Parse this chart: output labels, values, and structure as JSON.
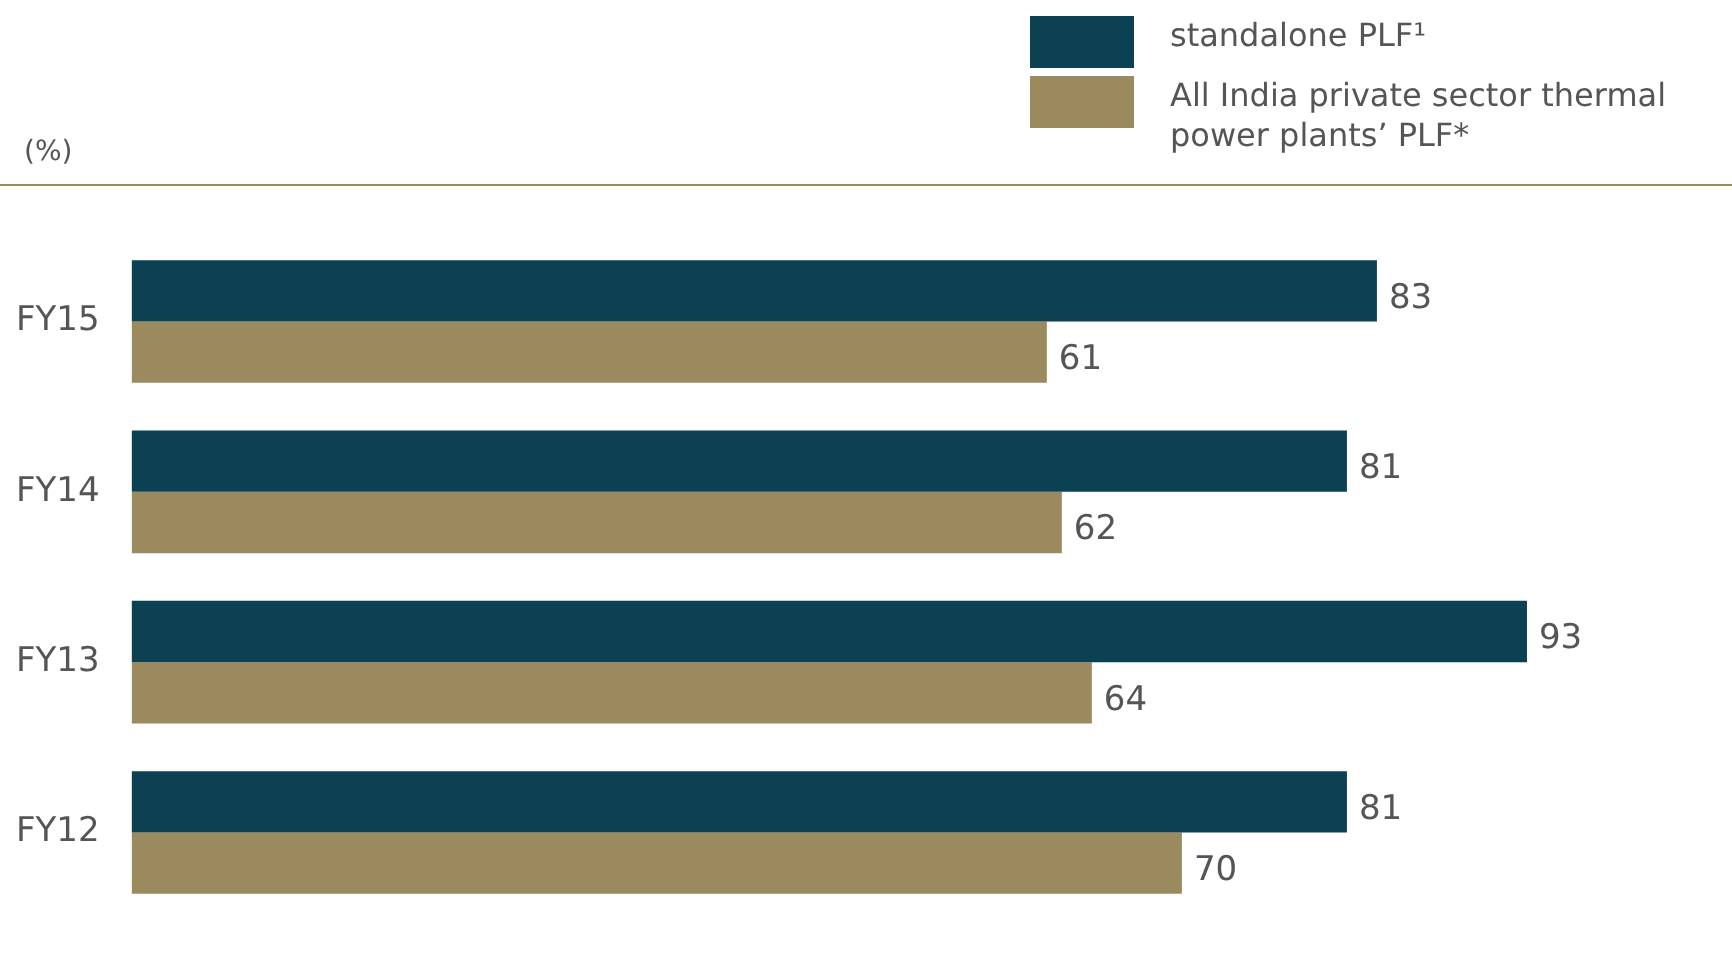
{
  "chart_data": {
    "type": "bar",
    "orientation": "horizontal",
    "categories": [
      "FY15",
      "FY14",
      "FY13",
      "FY12"
    ],
    "series": [
      {
        "name": "standalone PLF¹",
        "color": "#0b4153",
        "values": [
          83,
          81,
          93,
          81
        ]
      },
      {
        "name": "All India private sector thermal power plants’ PLF*",
        "color": "#9b8a5e",
        "values": [
          61,
          62,
          64,
          70
        ]
      }
    ],
    "data_labels": true,
    "legend": "top right",
    "annotations": [
      "(%)"
    ]
  }
}
